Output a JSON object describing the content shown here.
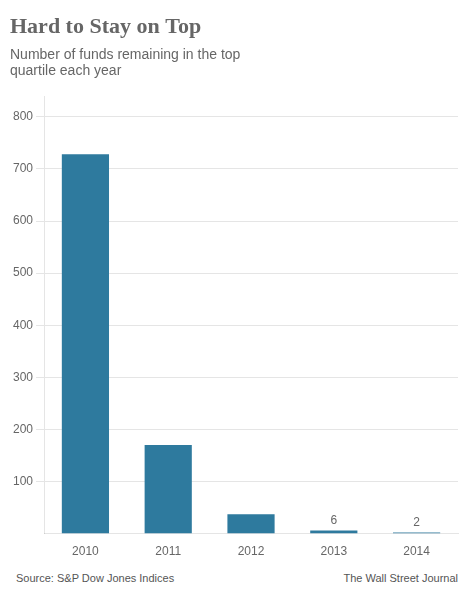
{
  "chart_data": {
    "type": "bar",
    "title": "Hard to Stay on Top",
    "subtitle": "Number of funds remaining in the top\nquartile each year",
    "categories": [
      "2010",
      "2011",
      "2012",
      "2013",
      "2014"
    ],
    "values": [
      728,
      170,
      37,
      6,
      2
    ],
    "value_labels": [
      null,
      null,
      null,
      "6",
      "2"
    ],
    "color": "#2e7a9e",
    "ylim": [
      0,
      840
    ],
    "yticks": [
      100,
      200,
      300,
      400,
      500,
      600,
      700,
      800
    ],
    "grid": true,
    "annotations": [
      "Source: S&P Dow Jones Indices",
      "The Wall Street Journal"
    ]
  }
}
